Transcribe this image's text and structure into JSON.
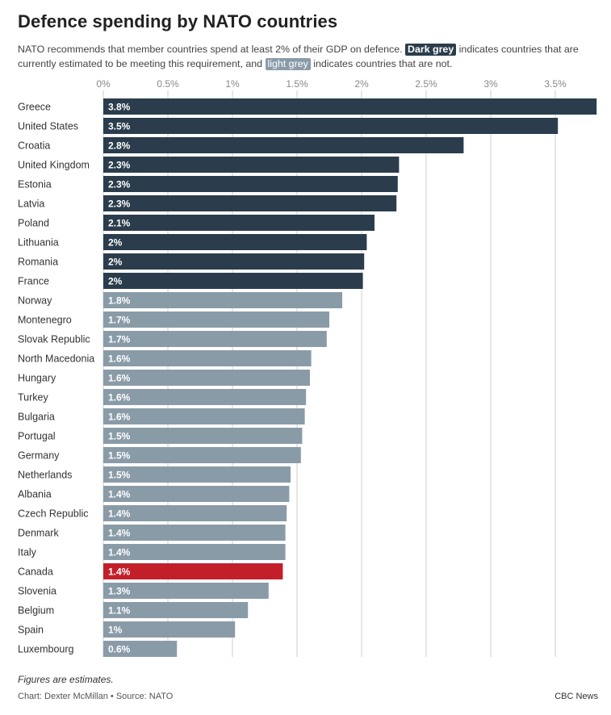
{
  "header": {
    "title": "Defence spending by NATO countries",
    "subtitle_pre": "NATO recommends that member countries spend at least 2% of their GDP on defence.",
    "chip_dark": "Dark grey",
    "subtitle_mid": "indicates countries that are currently estimated to be meeting this requirement, and",
    "chip_light": "light grey",
    "subtitle_post": "indicates countries that are not."
  },
  "footer": {
    "note": "Figures are estimates.",
    "credit": "Chart: Dexter McMillan • Source: NATO",
    "brand": "CBC News"
  },
  "colors": {
    "meeting": "#2b3d4c",
    "not_meeting": "#8a9ba8",
    "highlight": "#c31f2b",
    "grid": "#cccccc",
    "tick_text": "#888888"
  },
  "chart_data": {
    "type": "bar",
    "orientation": "horizontal",
    "title": "Defence spending by NATO countries",
    "xlabel": "",
    "ylabel": "",
    "xlim": [
      0,
      3.8
    ],
    "xticks": [
      0,
      0.5,
      1,
      1.5,
      2,
      2.5,
      3,
      3.5
    ],
    "xtick_labels": [
      "0%",
      "0.5%",
      "1%",
      "1.5%",
      "2%",
      "2.5%",
      "3%",
      "3.5%"
    ],
    "grid": "vertical",
    "categories": [
      "Greece",
      "United States",
      "Croatia",
      "United Kingdom",
      "Estonia",
      "Latvia",
      "Poland",
      "Lithuania",
      "Romania",
      "France",
      "Norway",
      "Montenegro",
      "Slovak Republic",
      "North Macedonia",
      "Hungary",
      "Turkey",
      "Bulgaria",
      "Portugal",
      "Germany",
      "Netherlands",
      "Albania",
      "Czech Republic",
      "Denmark",
      "Italy",
      "Canada",
      "Slovenia",
      "Belgium",
      "Spain",
      "Luxembourg"
    ],
    "values": [
      3.82,
      3.52,
      2.79,
      2.29,
      2.28,
      2.27,
      2.1,
      2.04,
      2.02,
      2.01,
      1.85,
      1.75,
      1.73,
      1.61,
      1.6,
      1.57,
      1.56,
      1.54,
      1.53,
      1.45,
      1.44,
      1.42,
      1.41,
      1.41,
      1.39,
      1.28,
      1.12,
      1.02,
      0.57
    ],
    "value_labels": [
      "3.8%",
      "3.5%",
      "2.8%",
      "2.3%",
      "2.3%",
      "2.3%",
      "2.1%",
      "2%",
      "2%",
      "2%",
      "1.8%",
      "1.7%",
      "1.7%",
      "1.6%",
      "1.6%",
      "1.6%",
      "1.6%",
      "1.5%",
      "1.5%",
      "1.5%",
      "1.4%",
      "1.4%",
      "1.4%",
      "1.4%",
      "1.4%",
      "1.3%",
      "1.1%",
      "1%",
      "0.6%"
    ],
    "groups": [
      "meeting",
      "meeting",
      "meeting",
      "meeting",
      "meeting",
      "meeting",
      "meeting",
      "meeting",
      "meeting",
      "meeting",
      "not_meeting",
      "not_meeting",
      "not_meeting",
      "not_meeting",
      "not_meeting",
      "not_meeting",
      "not_meeting",
      "not_meeting",
      "not_meeting",
      "not_meeting",
      "not_meeting",
      "not_meeting",
      "not_meeting",
      "not_meeting",
      "highlight",
      "not_meeting",
      "not_meeting",
      "not_meeting",
      "not_meeting"
    ]
  }
}
